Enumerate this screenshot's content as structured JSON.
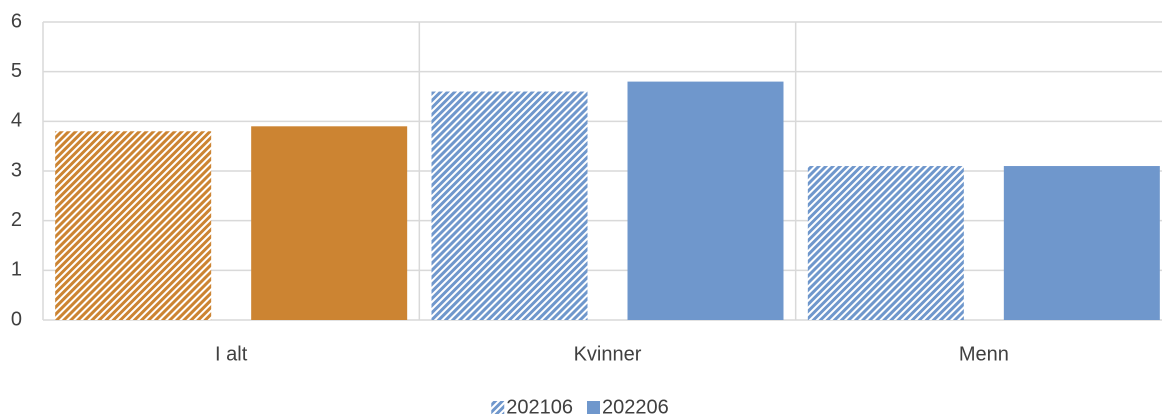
{
  "chart_data": {
    "type": "bar",
    "categories": [
      "I alt",
      "Kvinner",
      "Menn"
    ],
    "series": [
      {
        "name": "202106",
        "color": "#6f97cc",
        "pattern": "hatch",
        "colors": [
          "#cc8432",
          "#6f97cc",
          "#6f97cc"
        ],
        "values": [
          3.8,
          4.6,
          3.1
        ]
      },
      {
        "name": "202206",
        "color": "#6f97cc",
        "pattern": "solid",
        "colors": [
          "#cc8432",
          "#6f97cc",
          "#6f97cc"
        ],
        "values": [
          3.9,
          4.8,
          3.1
        ]
      }
    ],
    "ylim": [
      0,
      6
    ],
    "yticks": [
      0,
      1,
      2,
      3,
      4,
      5,
      6
    ],
    "grid": true,
    "legend": "bottom"
  }
}
